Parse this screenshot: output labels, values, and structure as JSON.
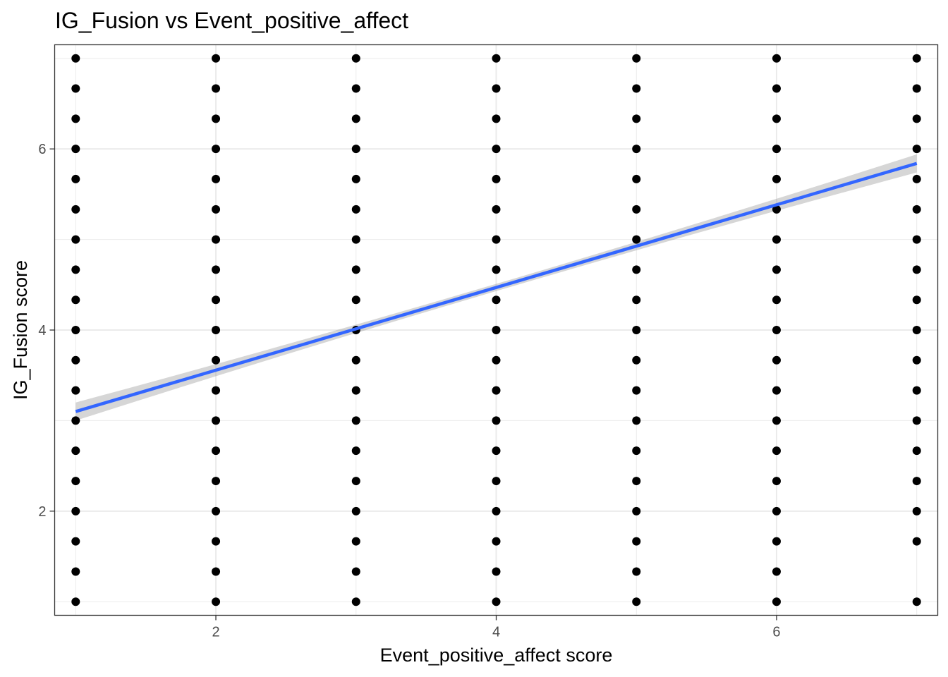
{
  "chart_data": {
    "type": "scatter",
    "title": "IG_Fusion vs Event_positive_affect",
    "xlabel": "Event_positive_affect score",
    "ylabel": "IG_Fusion score",
    "xlim": [
      0.85,
      7.15
    ],
    "ylim": [
      0.85,
      7.15
    ],
    "x_ticks": [
      2,
      4,
      6
    ],
    "y_ticks": [
      2,
      4,
      6
    ],
    "grid": true,
    "legend": "none",
    "point_color": "#000000",
    "points_by_x": [
      {
        "x": 1,
        "y": [
          1,
          1.333,
          1.667,
          2,
          2.333,
          2.667,
          3,
          3.333,
          3.667,
          4,
          4.333,
          4.667,
          5,
          5.333,
          5.667,
          6,
          6.333,
          6.667,
          7
        ]
      },
      {
        "x": 2,
        "y": [
          1,
          1.333,
          1.667,
          2,
          2.333,
          2.667,
          3,
          3.333,
          3.667,
          4,
          4.333,
          4.667,
          5,
          5.333,
          5.667,
          6,
          6.333,
          6.667,
          7
        ]
      },
      {
        "x": 3,
        "y": [
          1,
          1.333,
          1.667,
          2,
          2.333,
          2.667,
          3,
          3.333,
          3.667,
          4,
          4.333,
          4.667,
          5,
          5.333,
          5.667,
          6,
          6.333,
          6.667,
          7
        ]
      },
      {
        "x": 4,
        "y": [
          1,
          1.333,
          1.667,
          2,
          2.333,
          2.667,
          3,
          3.333,
          3.667,
          4,
          4.333,
          4.667,
          5,
          5.333,
          5.667,
          6,
          6.333,
          6.667,
          7
        ]
      },
      {
        "x": 5,
        "y": [
          1,
          1.333,
          1.667,
          2,
          2.333,
          2.667,
          3,
          3.333,
          3.667,
          4,
          4.333,
          4.667,
          5,
          5.333,
          5.667,
          6,
          6.333,
          6.667,
          7
        ]
      },
      {
        "x": 6,
        "y": [
          1,
          1.333,
          1.667,
          2,
          2.333,
          2.667,
          3,
          3.333,
          3.667,
          4,
          4.333,
          4.667,
          5,
          5.333,
          5.667,
          6,
          6.333,
          6.667,
          7
        ]
      },
      {
        "x": 7,
        "y": [
          1,
          1.667,
          2,
          2.333,
          2.667,
          3,
          3.333,
          3.667,
          4,
          4.333,
          4.667,
          5,
          5.333,
          5.667,
          6,
          6.333,
          6.667,
          7
        ]
      }
    ],
    "trend_line": {
      "method": "linear",
      "color": "#3366FF",
      "band_color": "#999999",
      "x_start": 1,
      "y_start": 3.1,
      "x_end": 7,
      "y_end": 5.84,
      "band_halfwidth_ends": 0.1,
      "band_halfwidth_mid": 0.04
    }
  }
}
